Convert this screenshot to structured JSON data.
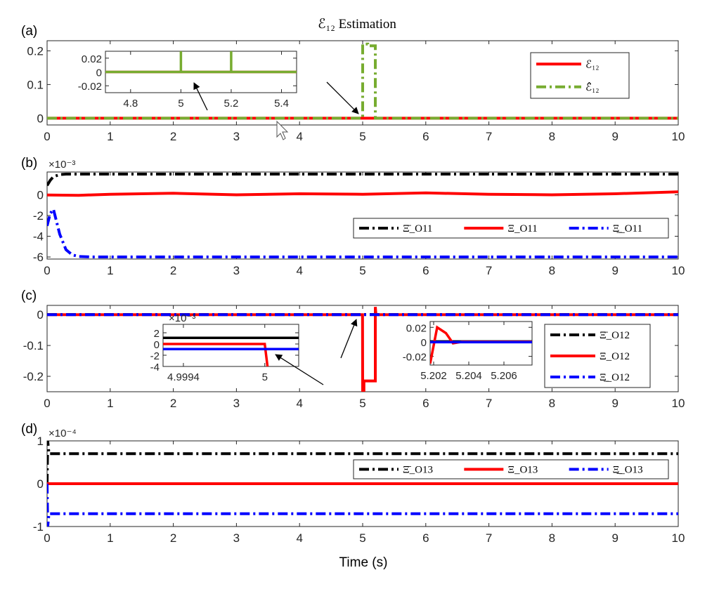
{
  "figure": {
    "title": "ℰ₁₂ Estimation",
    "xlabel": "Time (s)"
  },
  "chart_data": [
    {
      "type": "line",
      "panel_label": "(a)",
      "xlim": [
        0,
        10
      ],
      "ylim": [
        -0.02,
        0.23
      ],
      "xticks": [
        "0",
        "1",
        "2",
        "3",
        "4",
        "5",
        "6",
        "7",
        "8",
        "9",
        "10"
      ],
      "yticks": [
        "0",
        "0.1",
        "0.2"
      ],
      "legend_position": "top-right",
      "series": [
        {
          "name": "ℰ₁₂",
          "color": "#ff0000",
          "style": "solid",
          "x": [
            0,
            10
          ],
          "y": [
            0,
            0
          ]
        },
        {
          "name": "ℰ̂₁₂",
          "color": "#77ac30",
          "style": "dashdot",
          "x": [
            0,
            4.998,
            5.0,
            5.0,
            5.08,
            5.08,
            5.2,
            5.2,
            10
          ],
          "y": [
            0,
            0,
            0,
            0.22,
            0.22,
            0.215,
            0.215,
            0,
            0
          ]
        }
      ],
      "inset": {
        "xlim": [
          4.7,
          5.46
        ],
        "ylim": [
          -0.03,
          0.03
        ],
        "xticks": [
          "4.8",
          "5",
          "5.2",
          "5.4"
        ],
        "yticks": [
          "0.02",
          "0",
          "-0.02"
        ],
        "series": [
          {
            "name": "ℰ₁₂",
            "color": "#ff0000",
            "x": [
              4.7,
              5.46
            ],
            "y": [
              0,
              0
            ]
          },
          {
            "name": "ℰ̂₁₂",
            "color": "#77ac30",
            "x": [
              4.7,
              4.998,
              5.0,
              5.0,
              5.0,
              5.2,
              5.2,
              5.2,
              5.46
            ],
            "y": [
              0,
              0,
              0,
              0.03,
              0,
              0,
              0.03,
              0,
              0
            ]
          }
        ]
      }
    },
    {
      "type": "line",
      "panel_label": "(b)",
      "exponent": "×10⁻³",
      "xlim": [
        0,
        10
      ],
      "ylim": [
        -6.2,
        2.2
      ],
      "xticks": [
        "0",
        "1",
        "2",
        "3",
        "4",
        "5",
        "6",
        "7",
        "8",
        "9",
        "10"
      ],
      "yticks": [
        "0",
        "-2",
        "-4",
        "-6"
      ],
      "legend_position": "lower-right",
      "series": [
        {
          "name": "Ξ̄_O11",
          "color": "#000000",
          "style": "dashdot",
          "x": [
            0,
            0.05,
            0.1,
            0.2,
            0.3,
            0.5,
            1,
            10
          ],
          "y": [
            0.9,
            1.4,
            1.75,
            1.95,
            2.0,
            2.0,
            2.0,
            2.0
          ]
        },
        {
          "name": "Ξ_O11",
          "color": "#ff0000",
          "style": "solid",
          "x": [
            0,
            0.5,
            1,
            2,
            3,
            4,
            5,
            6,
            7,
            8,
            9,
            10
          ],
          "y": [
            -0.02,
            -0.05,
            0.05,
            0.15,
            0.0,
            0.1,
            0.05,
            0.18,
            0.05,
            0.0,
            0.1,
            0.28
          ]
        },
        {
          "name": "Ξ̲_O11",
          "color": "#0000ff",
          "style": "dashdot",
          "x": [
            0,
            0.05,
            0.1,
            0.2,
            0.3,
            0.4,
            0.5,
            0.7,
            1,
            10
          ],
          "y": [
            -3.0,
            -1.8,
            -1.4,
            -3.8,
            -5.3,
            -5.8,
            -5.95,
            -6.0,
            -6.0,
            -6.0
          ]
        }
      ]
    },
    {
      "type": "line",
      "panel_label": "(c)",
      "xlim": [
        0,
        10
      ],
      "ylim": [
        -0.25,
        0.03
      ],
      "xticks": [
        "0",
        "1",
        "2",
        "3",
        "4",
        "5",
        "6",
        "7",
        "8",
        "9",
        "10"
      ],
      "yticks": [
        "0",
        "-0.1",
        "-0.2"
      ],
      "legend_position": "lower-right",
      "series": [
        {
          "name": "Ξ̄_O12",
          "color": "#000000",
          "style": "dashdot",
          "x": [
            0,
            10
          ],
          "y": [
            0.0003,
            0.0003
          ]
        },
        {
          "name": "Ξ_O12",
          "color": "#ff0000",
          "style": "solid",
          "x": [
            0,
            4.998,
            5.0,
            5.02,
            5.02,
            5.2,
            5.2,
            5.21,
            10
          ],
          "y": [
            0,
            0,
            -0.25,
            -0.25,
            -0.215,
            -0.215,
            0.025,
            0,
            0
          ]
        },
        {
          "name": "Ξ̲_O12",
          "color": "#0000ff",
          "style": "dashdot",
          "x": [
            0,
            10
          ],
          "y": [
            -0.0003,
            -0.0003
          ]
        }
      ],
      "insets": [
        {
          "exponent": "×10⁻³",
          "xlim": [
            4.99925,
            5.00025
          ],
          "ylim": [
            -4,
            3.5
          ],
          "xticks": [
            "4.9994",
            "5"
          ],
          "yticks": [
            "2",
            "0",
            "-2",
            "-4"
          ],
          "series": [
            {
              "name": "Ξ̄_O12",
              "color": "#000000",
              "x": [
                4.99925,
                5.00025
              ],
              "y": [
                1.1,
                1.1
              ]
            },
            {
              "name": "Ξ_O12",
              "color": "#ff0000",
              "x": [
                4.99925,
                5.0,
                5.0,
                5.00002
              ],
              "y": [
                0,
                0,
                0,
                -4
              ]
            },
            {
              "name": "Ξ̲_O12",
              "color": "#0000ff",
              "x": [
                4.99925,
                5.00025
              ],
              "y": [
                -0.9,
                -0.9
              ]
            }
          ]
        },
        {
          "xlim": [
            5.2018,
            5.2076
          ],
          "ylim": [
            -0.032,
            0.028
          ],
          "xticks": [
            "5.202",
            "5.204",
            "5.206"
          ],
          "yticks": [
            "0.02",
            "0",
            "-0.02"
          ],
          "series": [
            {
              "name": "Ξ̄_O12",
              "color": "#000000",
              "x": [
                5.2018,
                5.2076
              ],
              "y": [
                0.0005,
                0.0005
              ]
            },
            {
              "name": "Ξ_O12",
              "color": "#ff0000",
              "x": [
                5.2018,
                5.2022,
                5.2027,
                5.2031,
                5.2036,
                5.2076
              ],
              "y": [
                -0.03,
                0.02,
                0.012,
                -0.002,
                0.0,
                0.0
              ]
            },
            {
              "name": "Ξ̲_O12",
              "color": "#0000ff",
              "x": [
                5.2018,
                5.2076
              ],
              "y": [
                -0.0005,
                -0.0005
              ]
            }
          ]
        }
      ]
    },
    {
      "type": "line",
      "panel_label": "(d)",
      "exponent": "×10⁻⁴",
      "xlim": [
        0,
        10
      ],
      "ylim": [
        -1,
        1
      ],
      "xticks": [
        "0",
        "1",
        "2",
        "3",
        "4",
        "5",
        "6",
        "7",
        "8",
        "9",
        "10"
      ],
      "yticks": [
        "1",
        "0",
        "-1"
      ],
      "legend_position": "top-right",
      "series": [
        {
          "name": "Ξ̄_O13",
          "color": "#000000",
          "style": "dashdot",
          "x": [
            0,
            0.01,
            0.03,
            10
          ],
          "y": [
            0.0,
            1.0,
            0.7,
            0.7
          ]
        },
        {
          "name": "Ξ_O13",
          "color": "#ff0000",
          "style": "solid",
          "x": [
            0,
            10
          ],
          "y": [
            0,
            0
          ]
        },
        {
          "name": "Ξ̲_O13",
          "color": "#0000ff",
          "style": "dashdot",
          "x": [
            0,
            0.01,
            0.03,
            10
          ],
          "y": [
            0.0,
            -1.0,
            -0.7,
            -0.7
          ]
        }
      ]
    }
  ]
}
